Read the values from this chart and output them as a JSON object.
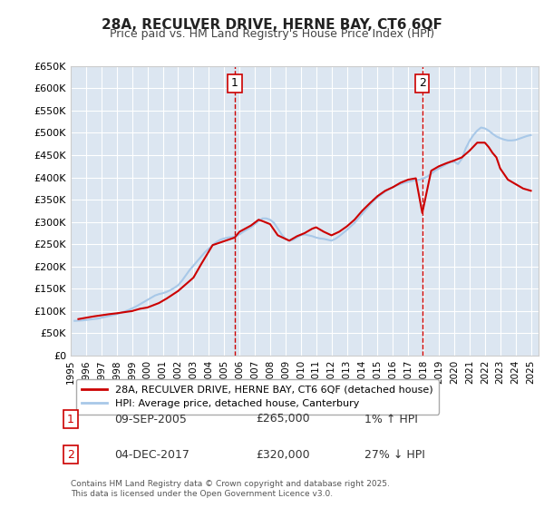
{
  "title_line1": "28A, RECULVER DRIVE, HERNE BAY, CT6 6QF",
  "title_line2": "Price paid vs. HM Land Registry's House Price Index (HPI)",
  "ylabel": "",
  "background_color": "#ffffff",
  "plot_bg_color": "#dce6f1",
  "grid_color": "#ffffff",
  "hpi_color": "#a8c8e8",
  "price_color": "#cc0000",
  "vline_color": "#cc0000",
  "ylim": [
    0,
    650000
  ],
  "yticks": [
    0,
    50000,
    100000,
    150000,
    200000,
    250000,
    300000,
    350000,
    400000,
    450000,
    500000,
    550000,
    600000,
    650000
  ],
  "ytick_labels": [
    "£0",
    "£50K",
    "£100K",
    "£150K",
    "£200K",
    "£250K",
    "£300K",
    "£350K",
    "£400K",
    "£450K",
    "£500K",
    "£550K",
    "£600K",
    "£650K"
  ],
  "xlim_start": 1995.0,
  "xlim_end": 2025.5,
  "xticks": [
    1995,
    1996,
    1997,
    1998,
    1999,
    2000,
    2001,
    2002,
    2003,
    2004,
    2005,
    2006,
    2007,
    2008,
    2009,
    2010,
    2011,
    2012,
    2013,
    2014,
    2015,
    2016,
    2017,
    2018,
    2019,
    2020,
    2021,
    2022,
    2023,
    2024,
    2025
  ],
  "marker1_x": 2005.69,
  "marker1_y": 265000,
  "marker1_label": "1",
  "marker1_date": "09-SEP-2005",
  "marker1_price": "£265,000",
  "marker1_hpi": "1% ↑ HPI",
  "marker2_x": 2017.92,
  "marker2_y": 320000,
  "marker2_label": "2",
  "marker2_date": "04-DEC-2017",
  "marker2_price": "£320,000",
  "marker2_hpi": "27% ↓ HPI",
  "legend_line1": "28A, RECULVER DRIVE, HERNE BAY, CT6 6QF (detached house)",
  "legend_line2": "HPI: Average price, detached house, Canterbury",
  "footer": "Contains HM Land Registry data © Crown copyright and database right 2025.\nThis data is licensed under the Open Government Licence v3.0.",
  "hpi_data": {
    "years": [
      1995.25,
      1995.5,
      1995.75,
      1996.0,
      1996.25,
      1996.5,
      1996.75,
      1997.0,
      1997.25,
      1997.5,
      1997.75,
      1998.0,
      1998.25,
      1998.5,
      1998.75,
      1999.0,
      1999.25,
      1999.5,
      1999.75,
      2000.0,
      2000.25,
      2000.5,
      2000.75,
      2001.0,
      2001.25,
      2001.5,
      2001.75,
      2002.0,
      2002.25,
      2002.5,
      2002.75,
      2003.0,
      2003.25,
      2003.5,
      2003.75,
      2004.0,
      2004.25,
      2004.5,
      2004.75,
      2005.0,
      2005.25,
      2005.5,
      2005.75,
      2006.0,
      2006.25,
      2006.5,
      2006.75,
      2007.0,
      2007.25,
      2007.5,
      2007.75,
      2008.0,
      2008.25,
      2008.5,
      2008.75,
      2009.0,
      2009.25,
      2009.5,
      2009.75,
      2010.0,
      2010.25,
      2010.5,
      2010.75,
      2011.0,
      2011.25,
      2011.5,
      2011.75,
      2012.0,
      2012.25,
      2012.5,
      2012.75,
      2013.0,
      2013.25,
      2013.5,
      2013.75,
      2014.0,
      2014.25,
      2014.5,
      2014.75,
      2015.0,
      2015.25,
      2015.5,
      2015.75,
      2016.0,
      2016.25,
      2016.5,
      2016.75,
      2017.0,
      2017.25,
      2017.5,
      2017.75,
      2018.0,
      2018.25,
      2018.5,
      2018.75,
      2019.0,
      2019.25,
      2019.5,
      2019.75,
      2020.0,
      2020.25,
      2020.5,
      2020.75,
      2021.0,
      2021.25,
      2021.5,
      2021.75,
      2022.0,
      2022.25,
      2022.5,
      2022.75,
      2023.0,
      2023.25,
      2023.5,
      2023.75,
      2024.0,
      2024.25,
      2024.5,
      2024.75,
      2025.0
    ],
    "values": [
      78000,
      78500,
      79000,
      80000,
      81000,
      82000,
      83000,
      85000,
      87000,
      89000,
      91000,
      93000,
      96000,
      99000,
      102000,
      106000,
      110000,
      115000,
      120000,
      125000,
      130000,
      135000,
      138000,
      140000,
      143000,
      147000,
      152000,
      158000,
      168000,
      180000,
      192000,
      202000,
      212000,
      222000,
      232000,
      240000,
      248000,
      255000,
      260000,
      263000,
      265000,
      266000,
      268000,
      272000,
      278000,
      283000,
      288000,
      295000,
      302000,
      308000,
      308000,
      305000,
      298000,
      285000,
      272000,
      262000,
      258000,
      260000,
      265000,
      270000,
      272000,
      270000,
      268000,
      265000,
      263000,
      262000,
      260000,
      258000,
      262000,
      268000,
      275000,
      282000,
      290000,
      298000,
      308000,
      318000,
      328000,
      338000,
      348000,
      355000,
      362000,
      368000,
      374000,
      378000,
      382000,
      385000,
      388000,
      390000,
      392000,
      394000,
      395000,
      398000,
      402000,
      408000,
      415000,
      420000,
      425000,
      430000,
      435000,
      435000,
      430000,
      442000,
      465000,
      482000,
      495000,
      505000,
      512000,
      510000,
      505000,
      498000,
      492000,
      488000,
      485000,
      483000,
      483000,
      484000,
      487000,
      490000,
      493000,
      495000
    ]
  },
  "price_data": {
    "years": [
      1995.5,
      1996.0,
      1996.5,
      1997.5,
      1998.0,
      1999.0,
      1999.5,
      2000.0,
      2000.75,
      2001.25,
      2002.0,
      2003.0,
      2003.5,
      2004.25,
      2005.69,
      2006.0,
      2006.75,
      2007.25,
      2007.5,
      2008.0,
      2008.5,
      2009.25,
      2009.75,
      2010.25,
      2010.75,
      2011.0,
      2011.5,
      2012.0,
      2012.5,
      2013.0,
      2013.5,
      2014.0,
      2014.5,
      2015.0,
      2015.5,
      2016.0,
      2016.5,
      2017.0,
      2017.5,
      2017.92,
      2018.5,
      2019.0,
      2019.5,
      2020.0,
      2020.5,
      2021.0,
      2021.5,
      2022.0,
      2022.25,
      2022.5,
      2022.75,
      2023.0,
      2023.5,
      2024.0,
      2024.5,
      2025.0
    ],
    "values": [
      82000,
      85000,
      88000,
      93000,
      95000,
      100000,
      105000,
      108000,
      118000,
      128000,
      145000,
      175000,
      205000,
      248000,
      265000,
      278000,
      292000,
      305000,
      302000,
      295000,
      270000,
      258000,
      268000,
      275000,
      285000,
      288000,
      278000,
      270000,
      278000,
      290000,
      305000,
      325000,
      342000,
      358000,
      370000,
      378000,
      388000,
      395000,
      398000,
      320000,
      415000,
      425000,
      432000,
      438000,
      445000,
      460000,
      478000,
      478000,
      468000,
      455000,
      445000,
      420000,
      395000,
      385000,
      375000,
      370000
    ]
  }
}
